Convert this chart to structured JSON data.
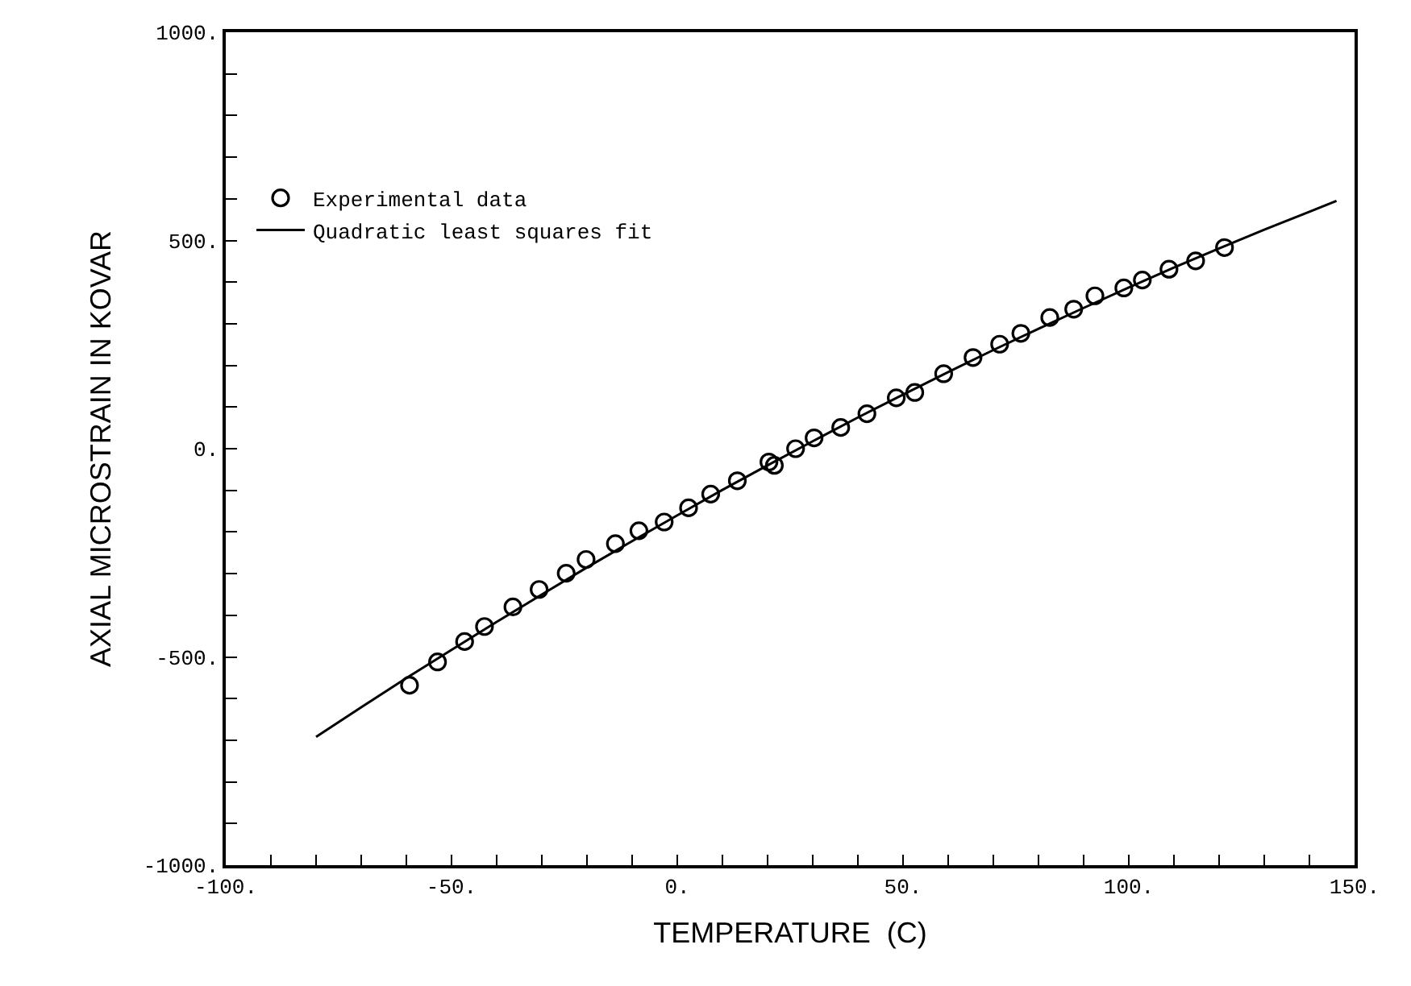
{
  "chart_data": {
    "type": "scatter",
    "xlabel": "TEMPERATURE  (C)",
    "ylabel": "AXIAL MICROSTRAIN IN KOVAR",
    "xlim": [
      -100,
      150
    ],
    "ylim": [
      -1000,
      1000
    ],
    "xticks": [
      {
        "value": -100,
        "label": "-100."
      },
      {
        "value": -90,
        "label": null
      },
      {
        "value": -80,
        "label": null
      },
      {
        "value": -70,
        "label": null
      },
      {
        "value": -60,
        "label": null
      },
      {
        "value": -50,
        "label": "-50."
      },
      {
        "value": -40,
        "label": null
      },
      {
        "value": -30,
        "label": null
      },
      {
        "value": -20,
        "label": null
      },
      {
        "value": -10,
        "label": null
      },
      {
        "value": 0,
        "label": "0."
      },
      {
        "value": 10,
        "label": null
      },
      {
        "value": 20,
        "label": null
      },
      {
        "value": 30,
        "label": null
      },
      {
        "value": 40,
        "label": null
      },
      {
        "value": 50,
        "label": "50."
      },
      {
        "value": 60,
        "label": null
      },
      {
        "value": 70,
        "label": null
      },
      {
        "value": 80,
        "label": null
      },
      {
        "value": 90,
        "label": null
      },
      {
        "value": 100,
        "label": "100."
      },
      {
        "value": 110,
        "label": null
      },
      {
        "value": 120,
        "label": null
      },
      {
        "value": 130,
        "label": null
      },
      {
        "value": 140,
        "label": null
      },
      {
        "value": 150,
        "label": "150."
      }
    ],
    "yticks": [
      {
        "value": -1000,
        "label": "-1000."
      },
      {
        "value": -900,
        "label": null
      },
      {
        "value": -800,
        "label": null
      },
      {
        "value": -700,
        "label": null
      },
      {
        "value": -600,
        "label": null
      },
      {
        "value": -500,
        "label": "-500."
      },
      {
        "value": -400,
        "label": null
      },
      {
        "value": -300,
        "label": null
      },
      {
        "value": -200,
        "label": null
      },
      {
        "value": -100,
        "label": null
      },
      {
        "value": 0,
        "label": "0."
      },
      {
        "value": 100,
        "label": null
      },
      {
        "value": 200,
        "label": null
      },
      {
        "value": 300,
        "label": null
      },
      {
        "value": 400,
        "label": null
      },
      {
        "value": 500,
        "label": "500."
      },
      {
        "value": 600,
        "label": null
      },
      {
        "value": 700,
        "label": null
      },
      {
        "value": 800,
        "label": null
      },
      {
        "value": 900,
        "label": null
      },
      {
        "value": 1000,
        "label": "1000."
      }
    ],
    "legend": "top left",
    "series": [
      {
        "name": "Experimental data",
        "marker": "circle",
        "color": "#000000",
        "x": [
          -59.3,
          -53.1,
          -47.1,
          -42.7,
          -36.4,
          -30.6,
          -24.6,
          -20.2,
          -13.7,
          -8.5,
          -2.9,
          2.5,
          7.4,
          13.3,
          20.3,
          21.5,
          26.2,
          30.3,
          36.2,
          42.0,
          48.5,
          52.6,
          59.0,
          65.5,
          71.4,
          76.1,
          82.5,
          87.8,
          92.5,
          98.9,
          103.0,
          108.9,
          114.8,
          121.2
        ],
        "values": [
          -568,
          -512,
          -463,
          -427,
          -380,
          -338,
          -299,
          -266,
          -228,
          -197,
          -176,
          -142,
          -109,
          -77,
          -32,
          -40,
          0,
          26,
          51,
          84,
          122,
          135,
          180,
          219,
          251,
          277,
          315,
          335,
          367,
          386,
          405,
          431,
          451,
          483
        ]
      },
      {
        "name": "Quadratic least squares fit",
        "type": "line",
        "marker": "none",
        "line_style": "solid",
        "color": "#000000",
        "x": [
          -80,
          -70,
          -60,
          -50,
          -40,
          -30,
          -20,
          -10,
          0,
          10,
          20,
          30,
          40,
          50,
          60,
          70,
          80,
          90,
          100,
          110,
          120,
          130,
          140,
          146
        ],
        "values": [
          -692,
          -621,
          -551,
          -483,
          -416,
          -350,
          -285,
          -222,
          -160,
          -99,
          -40,
          18,
          75,
          130,
          184,
          237,
          288,
          338,
          387,
          435,
          481,
          526,
          569,
          595
        ]
      }
    ]
  }
}
